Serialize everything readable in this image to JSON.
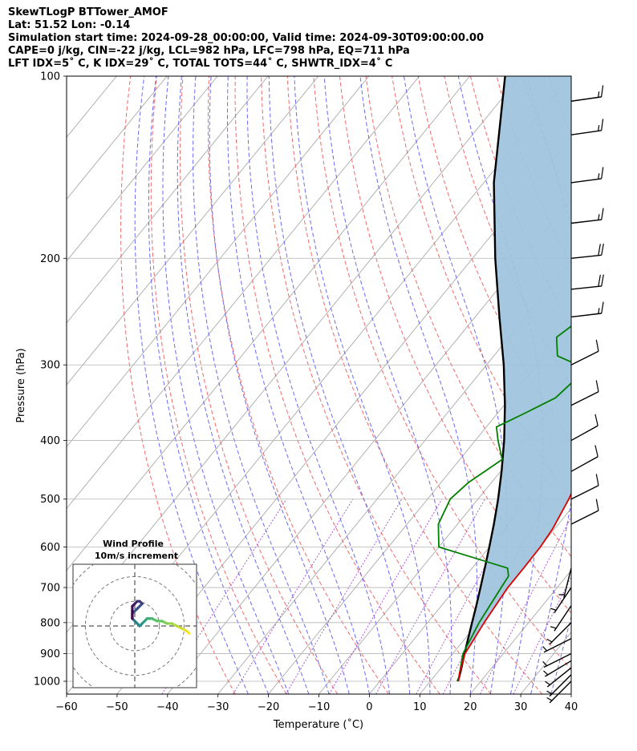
{
  "header": {
    "line1": "SkewTLogP BTTower_AMOF",
    "line2": "Lat: 51.52   Lon: -0.14",
    "line3": "Simulation start time: 2024-09-28_00:00:00, Valid time: 2024-09-30T09:00:00.00",
    "line4": "CAPE=0 j/kg, CIN=-22 j/kg, LCL=982 hPa, LFC=798 hPa, EQ=711 hPa",
    "line5": "LFT IDX=5˚ C, K IDX=29˚ C, TOTAL TOTS=44˚ C, SHWTR_IDX=4˚ C"
  },
  "chart_data": {
    "type": "line",
    "subtype": "skew-t log-p",
    "xlabel": "Temperature (˚C)",
    "ylabel": "Pressure (hPa)",
    "xlim": [
      -60,
      40
    ],
    "ylim": [
      1050,
      100
    ],
    "x_ticks": [
      "−60",
      "−50",
      "−40",
      "−30",
      "−20",
      "−10",
      "0",
      "10",
      "20",
      "30",
      "40"
    ],
    "x_tick_values": [
      -60,
      -50,
      -40,
      -30,
      -20,
      -10,
      0,
      10,
      20,
      30,
      40
    ],
    "y_ticks": [
      "1000",
      "900",
      "800",
      "700",
      "600",
      "500",
      "400",
      "300",
      "200",
      "100"
    ],
    "y_tick_values": [
      1000,
      900,
      800,
      700,
      600,
      500,
      400,
      300,
      200,
      100
    ],
    "series": [
      {
        "name": "Temperature",
        "color": "#e00000",
        "points": [
          [
            1000,
            15.6
          ],
          [
            970,
            14.5
          ],
          [
            900,
            12.4
          ],
          [
            800,
            11.2
          ],
          [
            700,
            10.2
          ],
          [
            650,
            10.2
          ],
          [
            600,
            10.1
          ],
          [
            560,
            9.6
          ],
          [
            500,
            8.0
          ],
          [
            450,
            6.0
          ],
          [
            400,
            2.5
          ],
          [
            350,
            -2.0
          ],
          [
            310,
            -6.9
          ],
          [
            290,
            -7.8
          ],
          [
            250,
            -7.8
          ],
          [
            230,
            -7.6
          ],
          [
            210,
            -6.8
          ],
          [
            200,
            -6.8
          ],
          [
            185,
            -7.5
          ],
          [
            170,
            -6.0
          ],
          [
            150,
            -6.0
          ],
          [
            130,
            -6.6
          ],
          [
            120,
            -7.4
          ],
          [
            110,
            -11.0
          ],
          [
            100,
            -15.0
          ]
        ]
      },
      {
        "name": "Dewpoint",
        "color": "#008000",
        "points": [
          [
            1000,
            15.5
          ],
          [
            970,
            14.5
          ],
          [
            900,
            12.0
          ],
          [
            800,
            10.2
          ],
          [
            700,
            8.9
          ],
          [
            670,
            8.5
          ],
          [
            650,
            7.0
          ],
          [
            620,
            -3.0
          ],
          [
            600,
            -10.0
          ],
          [
            550,
            -13.8
          ],
          [
            500,
            -15.5
          ],
          [
            470,
            -14.6
          ],
          [
            430,
            -11.6
          ],
          [
            400,
            -15.5
          ],
          [
            380,
            -18.0
          ],
          [
            360,
            -14.5
          ],
          [
            340,
            -11.0
          ],
          [
            320,
            -10.2
          ],
          [
            300,
            -11.9
          ],
          [
            290,
            -17.4
          ],
          [
            270,
            -20.6
          ],
          [
            250,
            -18.5
          ],
          [
            235,
            -18.8
          ],
          [
            215,
            -19.8
          ],
          [
            200,
            -22.5
          ],
          [
            185,
            -26.0
          ],
          [
            175,
            -28.7
          ],
          [
            160,
            -29.1
          ],
          [
            140,
            -34.4
          ],
          [
            100,
            -54.6
          ]
        ]
      },
      {
        "name": "Parcel",
        "color": "#000000",
        "points": [
          [
            1000,
            15.4
          ],
          [
            982,
            15.0
          ],
          [
            950,
            14.0
          ],
          [
            900,
            12.3
          ],
          [
            850,
            10.6
          ],
          [
            800,
            8.8
          ],
          [
            750,
            6.9
          ],
          [
            700,
            4.8
          ],
          [
            650,
            2.5
          ],
          [
            600,
            0.0
          ],
          [
            550,
            -2.8
          ],
          [
            500,
            -6.0
          ],
          [
            450,
            -9.8
          ],
          [
            400,
            -14.3
          ],
          [
            350,
            -19.8
          ],
          [
            300,
            -26.6
          ],
          [
            250,
            -35.2
          ],
          [
            200,
            -45.5
          ],
          [
            150,
            -58.0
          ],
          [
            100,
            -73.0
          ]
        ]
      }
    ],
    "shaded_region": {
      "name": "CIN area",
      "between": [
        "Parcel",
        "Temperature"
      ],
      "color": "#a0c4dd"
    },
    "wind_barbs": [
      {
        "p": 1000,
        "u": 5,
        "v": 5
      },
      {
        "p": 975,
        "u": 5,
        "v": 5
      },
      {
        "p": 950,
        "u": 5,
        "v": 4
      },
      {
        "p": 925,
        "u": 5,
        "v": 3
      },
      {
        "p": 900,
        "u": 4,
        "v": 2
      },
      {
        "p": 850,
        "u": 4,
        "v": 2
      },
      {
        "p": 800,
        "u": 2,
        "v": 2
      },
      {
        "p": 750,
        "u": 2,
        "v": 3
      },
      {
        "p": 700,
        "u": 2,
        "v": 3
      },
      {
        "p": 650,
        "u": 1,
        "v": 4
      },
      {
        "p": 550,
        "u": -10,
        "v": -5
      },
      {
        "p": 500,
        "u": -10,
        "v": -5
      },
      {
        "p": 450,
        "u": -9,
        "v": -5
      },
      {
        "p": 400,
        "u": -9,
        "v": -5
      },
      {
        "p": 350,
        "u": -10,
        "v": -5
      },
      {
        "p": 300,
        "u": -10,
        "v": -5
      },
      {
        "p": 250,
        "u": -17,
        "v": -2
      },
      {
        "p": 225,
        "u": -19,
        "v": -2
      },
      {
        "p": 200,
        "u": -19,
        "v": -2
      },
      {
        "p": 175,
        "u": -17,
        "v": -2
      },
      {
        "p": 150,
        "u": -15,
        "v": -2
      },
      {
        "p": 125,
        "u": -14,
        "v": -2
      },
      {
        "p": 110,
        "u": -14,
        "v": -2
      }
    ],
    "hodograph": {
      "title": "Wind Profile",
      "subtitle": "10m/s increment",
      "range": [
        -25,
        25
      ],
      "rings": [
        10,
        20,
        30
      ],
      "points": [
        [
          22,
          -3
        ],
        [
          21,
          -2
        ],
        [
          19,
          -1
        ],
        [
          17,
          0
        ],
        [
          15,
          1
        ],
        [
          13,
          1
        ],
        [
          11,
          2
        ],
        [
          9,
          2
        ],
        [
          7,
          3
        ],
        [
          6,
          3
        ],
        [
          5,
          3
        ],
        [
          4,
          2
        ],
        [
          3,
          1
        ],
        [
          2,
          0
        ],
        [
          1,
          1
        ],
        [
          0,
          2
        ],
        [
          -1,
          3
        ],
        [
          -1,
          5
        ],
        [
          0,
          6
        ],
        [
          1,
          7
        ],
        [
          3,
          9
        ],
        [
          2,
          10
        ],
        [
          1,
          10
        ],
        [
          0,
          9
        ],
        [
          -1,
          8
        ],
        [
          -1,
          6
        ],
        [
          -1,
          3
        ]
      ]
    }
  }
}
